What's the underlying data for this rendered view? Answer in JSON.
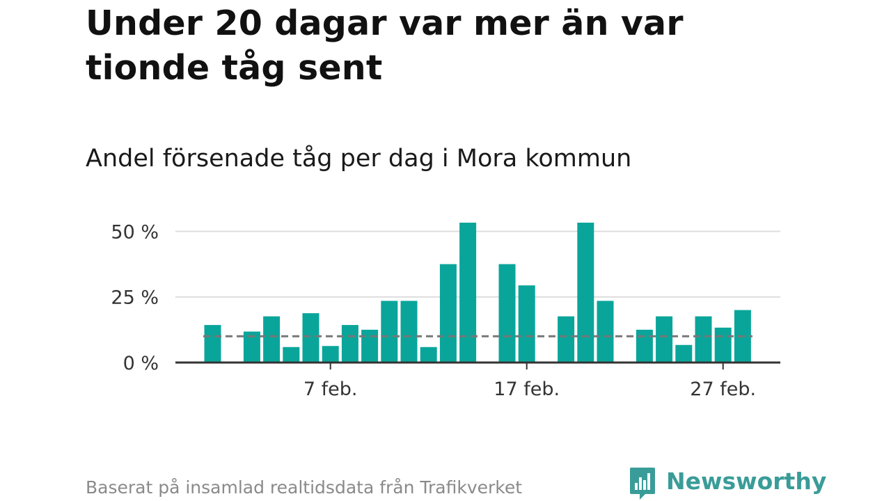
{
  "title": "Under 20 dagar var mer än var tionde tåg sent",
  "subtitle": "Andel försenade tåg per dag i Mora kommun",
  "source": "Baserat på insamlad realtidsdata från Trafikverket",
  "brand": {
    "name": "Newsworthy",
    "icon": "newsworthy-logo-icon"
  },
  "colors": {
    "bar": "#0aa59a",
    "reference_line": "#777777",
    "grid": "#dddddd",
    "axis": "#333333",
    "brand": "#3a9c98"
  },
  "chart_data": {
    "type": "bar",
    "x_axis_type": "date",
    "x": [
      "2020-02-01",
      "2020-02-02",
      "2020-02-03",
      "2020-02-04",
      "2020-02-05",
      "2020-02-06",
      "2020-02-07",
      "2020-02-08",
      "2020-02-09",
      "2020-02-10",
      "2020-02-11",
      "2020-02-12",
      "2020-02-13",
      "2020-02-14",
      "2020-02-15",
      "2020-02-16",
      "2020-02-17",
      "2020-02-18",
      "2020-02-19",
      "2020-02-20",
      "2020-02-21",
      "2020-02-22",
      "2020-02-23",
      "2020-02-24",
      "2020-02-25",
      "2020-02-26",
      "2020-02-27",
      "2020-02-28"
    ],
    "values": [
      14.3,
      null,
      11.8,
      17.6,
      5.9,
      18.8,
      6.3,
      14.3,
      12.5,
      23.5,
      23.5,
      5.9,
      37.5,
      53.3,
      null,
      37.5,
      29.4,
      null,
      17.6,
      53.3,
      23.5,
      null,
      12.5,
      17.6,
      6.7,
      17.6,
      13.3,
      20.0
    ],
    "reference_line": 10,
    "ylim": [
      0,
      53.3
    ],
    "yticks": [
      0,
      25,
      50
    ],
    "ytick_labels": [
      "0 %",
      "25 %",
      "50 %"
    ],
    "xticks": [
      "2020-02-07",
      "2020-02-17",
      "2020-02-27"
    ],
    "xtick_labels": [
      "7 feb.",
      "17 feb.",
      "27 feb."
    ],
    "grid": true,
    "legend": "none",
    "xlabel": "",
    "ylabel": ""
  }
}
